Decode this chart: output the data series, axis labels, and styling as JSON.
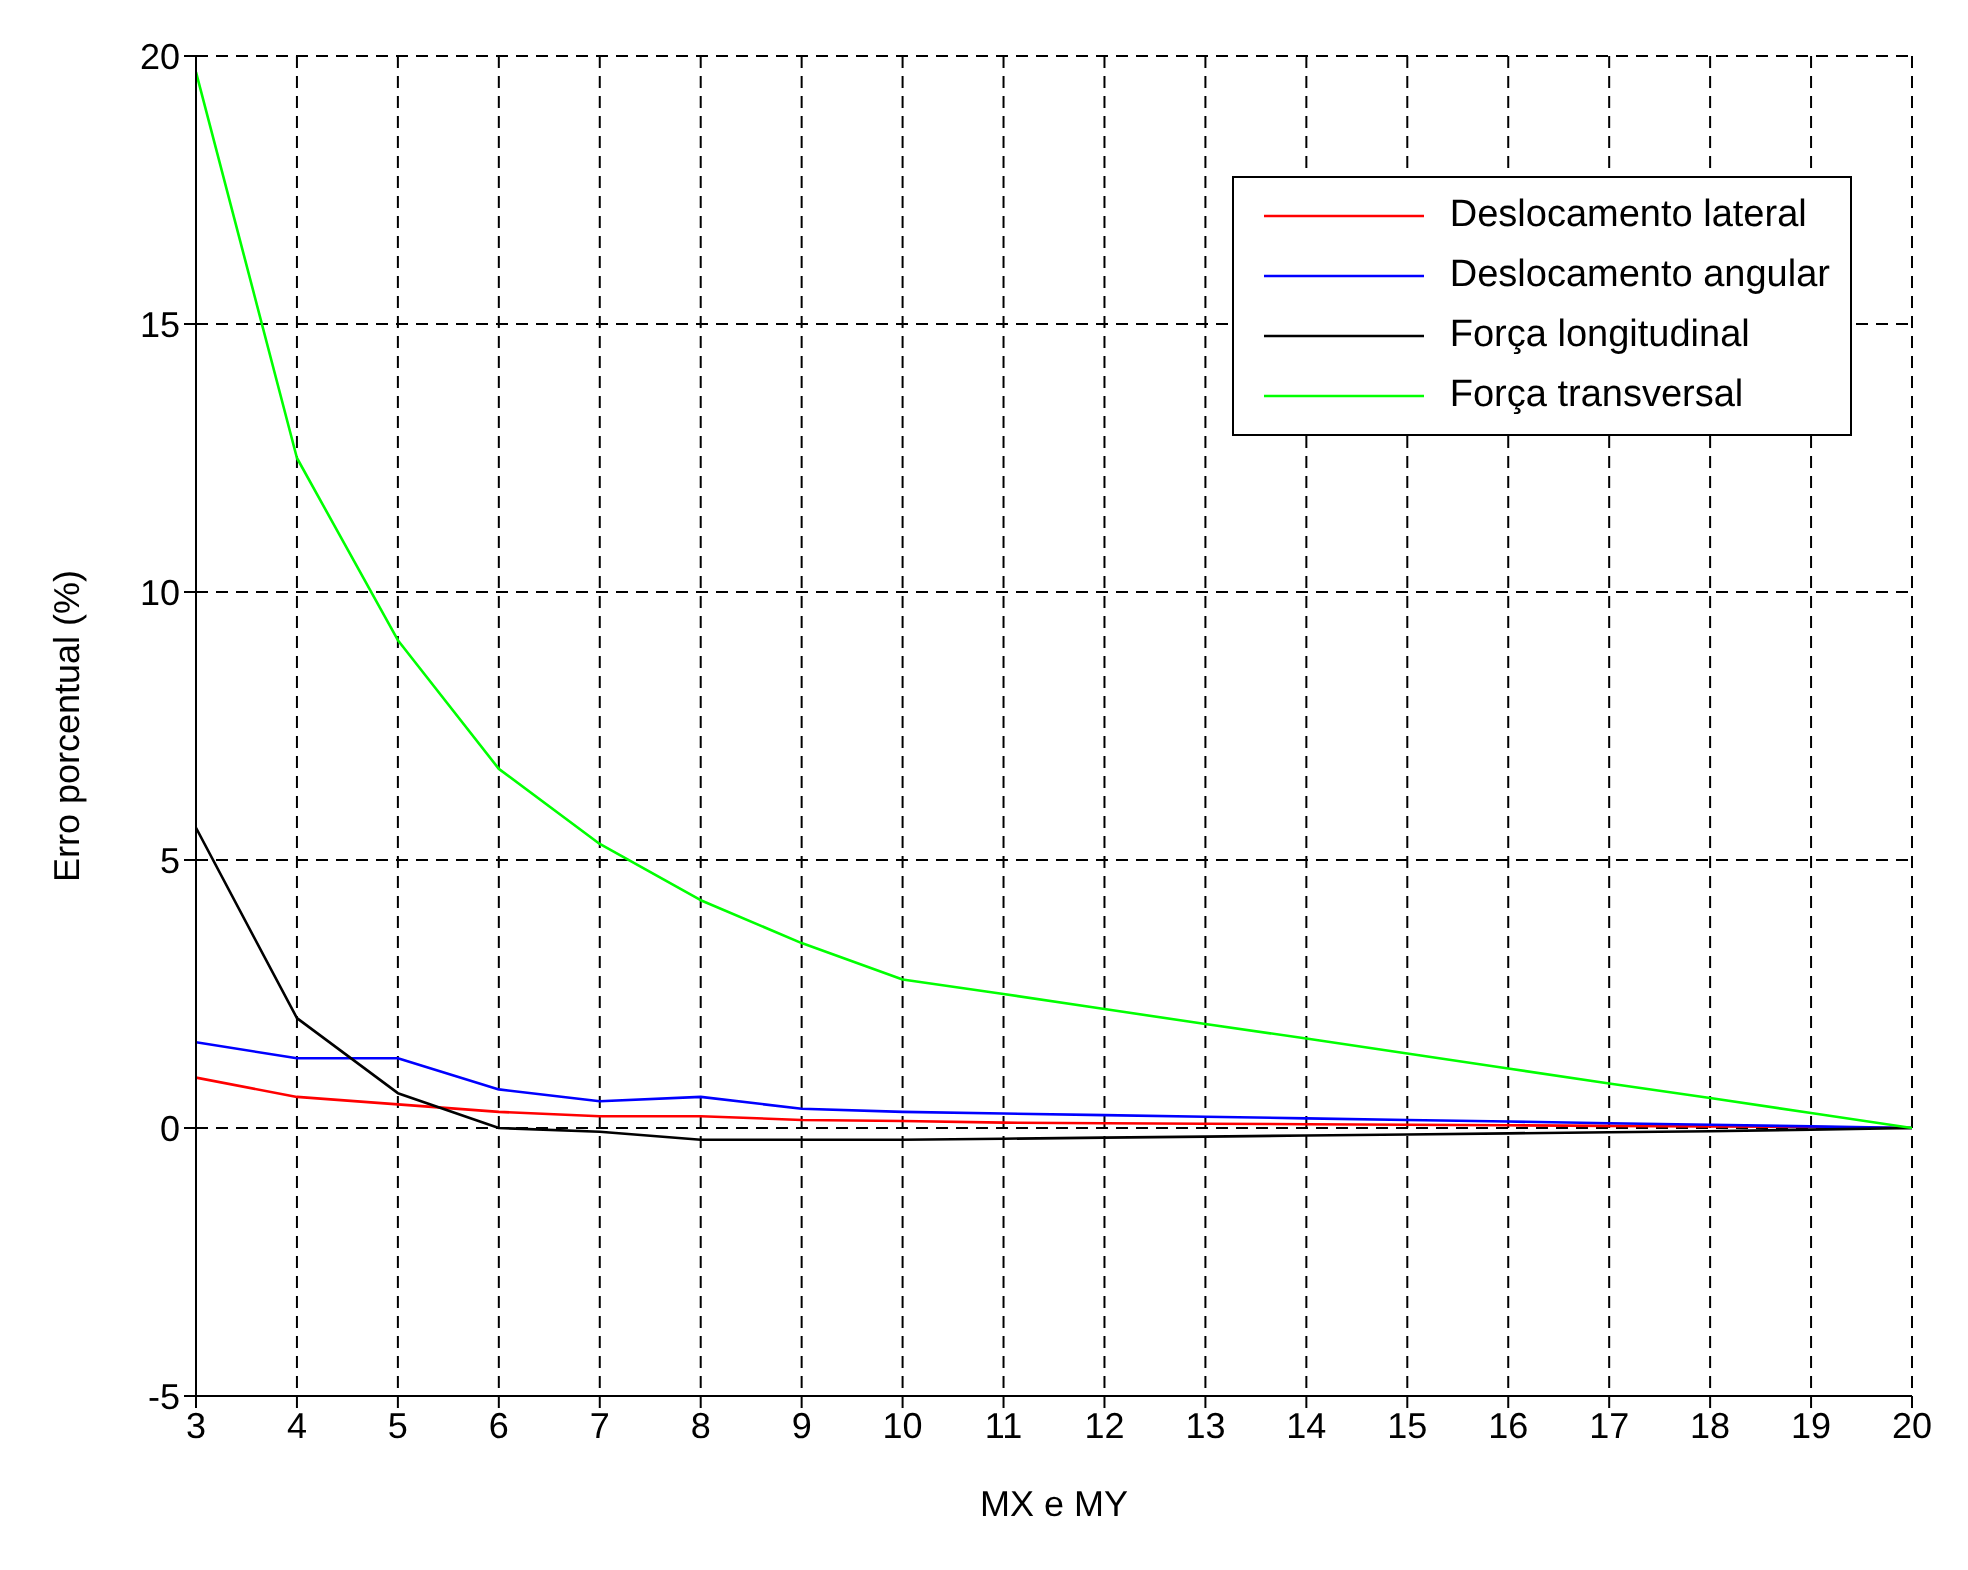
{
  "chart_data": {
    "type": "line",
    "xlabel": "MX e MY",
    "ylabel": "Erro porcentual (%)",
    "x": [
      3,
      4,
      5,
      6,
      7,
      8,
      9,
      10,
      11,
      12,
      13,
      14,
      15,
      16,
      17,
      18,
      19,
      20
    ],
    "series": [
      {
        "name": "Deslocamento lateral",
        "color": "#ff0000",
        "values": [
          0.94,
          0.58,
          0.44,
          0.3,
          0.22,
          0.22,
          0.15,
          0.13,
          0.1,
          0.09,
          0.08,
          0.07,
          0.06,
          0.05,
          0.04,
          0.03,
          0.02,
          0
        ]
      },
      {
        "name": "Deslocamento angular",
        "color": "#0000ff",
        "values": [
          1.6,
          1.3,
          1.3,
          0.72,
          0.5,
          0.58,
          0.36,
          0.3,
          0.27,
          0.24,
          0.21,
          0.18,
          0.15,
          0.12,
          0.09,
          0.06,
          0.03,
          0
        ]
      },
      {
        "name": "Força longitudinal",
        "color": "#000000",
        "values": [
          5.6,
          2.05,
          0.65,
          0,
          -0.07,
          -0.22,
          -0.22,
          -0.22,
          -0.2,
          -0.18,
          -0.16,
          -0.14,
          -0.12,
          -0.1,
          -0.08,
          -0.06,
          -0.03,
          0
        ]
      },
      {
        "name": "Força transversal",
        "color": "#00ff00",
        "values": [
          19.7,
          12.5,
          9.1,
          6.7,
          5.3,
          4.25,
          3.45,
          2.77,
          2.5,
          2.22,
          1.94,
          1.67,
          1.39,
          1.11,
          0.83,
          0.56,
          0.28,
          0
        ]
      }
    ],
    "xlim": [
      3,
      20
    ],
    "xticks": [
      3,
      4,
      5,
      6,
      7,
      8,
      9,
      10,
      11,
      12,
      13,
      14,
      15,
      16,
      17,
      18,
      19,
      20
    ],
    "ylim": [
      -5,
      20
    ],
    "yticks": [
      -5,
      0,
      5,
      10,
      15,
      20
    ],
    "grid": true,
    "legend": "top right",
    "marker": "none",
    "line_style": "solid"
  }
}
